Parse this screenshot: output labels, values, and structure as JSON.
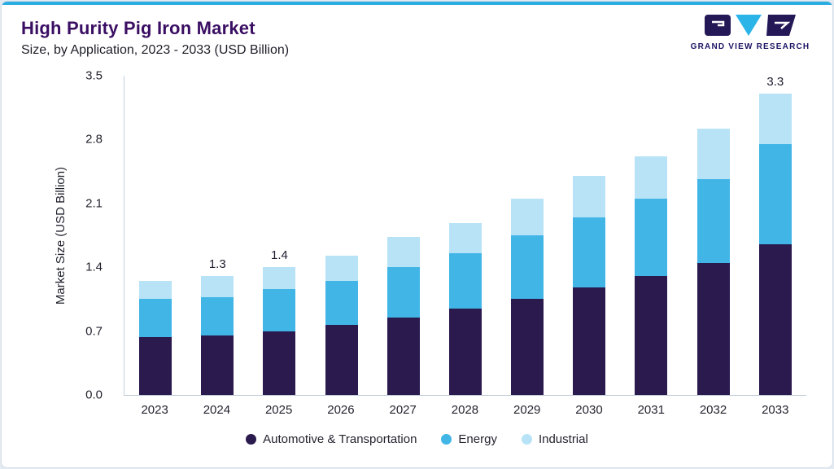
{
  "header": {
    "title": "High Purity Pig Iron Market",
    "subtitle": "Size, by Application, 2023 - 2033 (USD Billion)",
    "logo_text": "GRAND VIEW RESEARCH"
  },
  "chart_data": {
    "type": "bar",
    "stacked": true,
    "title": "High Purity Pig Iron Market Size, by Application, 2023 - 2033 (USD Billion)",
    "ylabel": "Market Size (USD Billion)",
    "ylim": [
      0,
      3.5
    ],
    "ytick_labels": [
      "3.5",
      "2.8",
      "2.1",
      "1.4",
      "0.7",
      "0.0"
    ],
    "categories": [
      "2023",
      "2024",
      "2025",
      "2026",
      "2027",
      "2028",
      "2029",
      "2030",
      "2031",
      "2032",
      "2033"
    ],
    "series": [
      {
        "name": "Automotive & Transportation",
        "color": "#2A1A4E",
        "values": [
          0.63,
          0.65,
          0.7,
          0.77,
          0.85,
          0.95,
          1.05,
          1.18,
          1.3,
          1.45,
          1.65
        ]
      },
      {
        "name": "Energy",
        "color": "#41B6E6",
        "values": [
          0.42,
          0.42,
          0.46,
          0.48,
          0.55,
          0.6,
          0.7,
          0.77,
          0.85,
          0.92,
          1.1
        ]
      },
      {
        "name": "Industrial",
        "color": "#B8E3F7",
        "values": [
          0.2,
          0.23,
          0.24,
          0.28,
          0.33,
          0.33,
          0.4,
          0.45,
          0.47,
          0.55,
          0.55
        ]
      }
    ],
    "bar_labels": {
      "2024": "1.3",
      "2025": "1.4",
      "2033": "3.3"
    },
    "legend_position": "bottom",
    "grid": false
  }
}
